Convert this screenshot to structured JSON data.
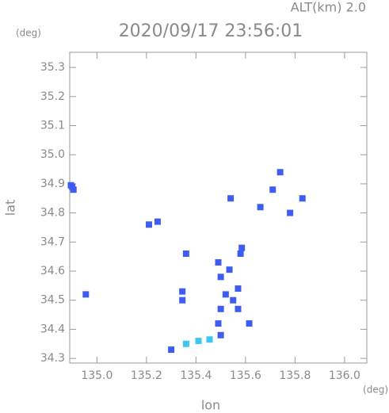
{
  "chart_data": {
    "type": "scatter",
    "title": "2020/09/17 23:56:01",
    "altitude_label": "ALT(km) 2.0",
    "y_unit": "(deg)",
    "x_unit": "(deg)",
    "xlabel": "lon",
    "ylabel": "lat",
    "xlim": [
      134.89,
      136.09
    ],
    "ylim": [
      34.284,
      35.352
    ],
    "xticks": [
      {
        "value": 135,
        "label": "135.0"
      },
      135.2,
      135.4,
      135.6,
      135.8,
      {
        "value": 136,
        "label": "136.0"
      }
    ],
    "yticks": [
      34.3,
      34.4,
      34.5,
      34.6,
      34.7,
      34.8,
      34.9,
      {
        "value": 35,
        "label": "35.0"
      },
      35.1,
      35.2,
      35.3
    ],
    "points": [
      {
        "color": "#3f5cf0",
        "x": [
          134.9,
          134.905,
          134.895,
          135.21,
          135.245,
          135.36,
          135.345,
          135.345,
          135.49,
          135.5,
          135.535,
          135.52,
          135.57,
          135.58,
          135.585,
          135.55,
          135.5,
          135.57,
          135.49,
          135.615,
          135.5,
          135.71,
          135.74,
          135.66,
          135.78,
          135.83,
          135.54,
          135.3,
          134.955
        ],
        "y": [
          34.89,
          34.88,
          34.895,
          34.76,
          34.77,
          34.66,
          34.53,
          34.5,
          34.63,
          34.58,
          34.605,
          34.52,
          34.54,
          34.66,
          34.68,
          34.5,
          34.47,
          34.47,
          34.42,
          34.42,
          34.38,
          34.88,
          34.94,
          34.82,
          34.8,
          34.85,
          34.85,
          34.33,
          34.52
        ]
      },
      {
        "color": "#3cc8f0",
        "x": [
          135.36,
          135.41,
          135.455
        ],
        "y": [
          34.35,
          34.36,
          34.365
        ]
      }
    ]
  }
}
